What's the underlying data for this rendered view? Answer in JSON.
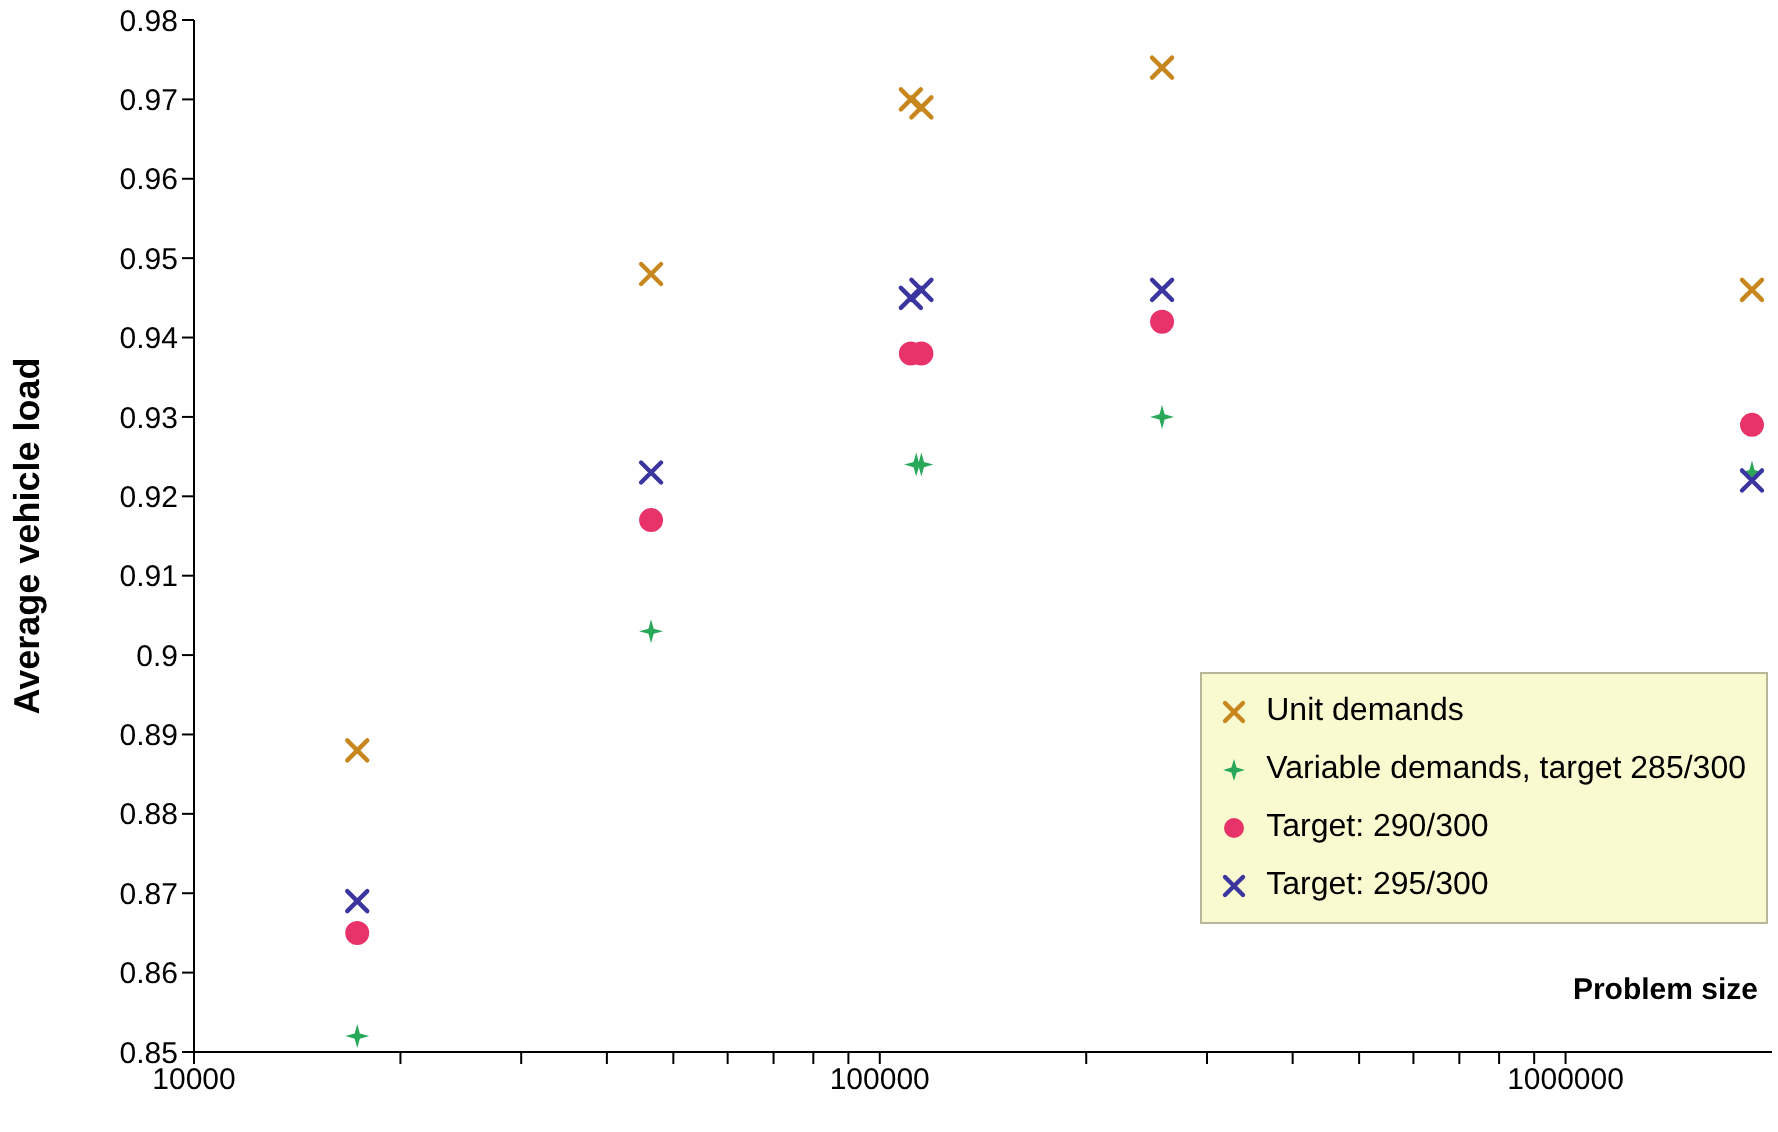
{
  "chart_data": {
    "type": "scatter",
    "xlabel": "Problem size",
    "ylabel": "Average vehicle load",
    "log": "x",
    "grid": false,
    "legend": "bottom right",
    "xlim": [
      10000,
      2000000
    ],
    "xticks": [
      10000,
      {
        "value": 20000,
        "label": null
      },
      {
        "value": 30000,
        "label": null
      },
      {
        "value": 40000,
        "label": null
      },
      {
        "value": 50000,
        "label": null
      },
      {
        "value": 60000,
        "label": null
      },
      {
        "value": 70000,
        "label": null
      },
      {
        "value": 80000,
        "label": null
      },
      {
        "value": 90000,
        "label": null
      },
      100000,
      {
        "value": 200000,
        "label": null
      },
      {
        "value": 300000,
        "label": null
      },
      {
        "value": 400000,
        "label": null
      },
      {
        "value": 500000,
        "label": null
      },
      {
        "value": 600000,
        "label": null
      },
      {
        "value": 700000,
        "label": null
      },
      {
        "value": 800000,
        "label": null
      },
      {
        "value": 900000,
        "label": null
      },
      1000000
    ],
    "ylim": [
      0.85,
      0.98
    ],
    "yticks": [
      0.85,
      0.86,
      0.87,
      0.88,
      0.89,
      0.9,
      0.91,
      0.92,
      0.93,
      0.94,
      0.95,
      0.96,
      0.97,
      0.98
    ],
    "series": [
      {
        "name": "Unit demands",
        "color": "#c8861e",
        "marker": "cross",
        "x": [
          17300,
          46400,
          111000,
          115000,
          258000,
          1870000
        ],
        "values": [
          0.888,
          0.948,
          0.97,
          0.969,
          0.974,
          0.946
        ]
      },
      {
        "name": "Variable demands, target 285/300",
        "color": "#2aa85a",
        "marker": "star",
        "x": [
          17300,
          46400,
          113000,
          115000,
          258000,
          1870000
        ],
        "values": [
          0.852,
          0.903,
          0.924,
          0.924,
          0.93,
          0.923
        ]
      },
      {
        "name": "Target: 290/300",
        "color": "#e8336a",
        "marker": "circle",
        "x": [
          17300,
          46400,
          111000,
          115000,
          258000,
          1870000
        ],
        "values": [
          0.865,
          0.917,
          0.938,
          0.938,
          0.942,
          0.929
        ]
      },
      {
        "name": "Target: 295/300",
        "color": "#3b35a0",
        "marker": "cross",
        "x": [
          17300,
          46400,
          111000,
          115000,
          258000,
          1870000
        ],
        "values": [
          0.869,
          0.923,
          0.945,
          0.946,
          0.946,
          0.922
        ]
      }
    ]
  }
}
